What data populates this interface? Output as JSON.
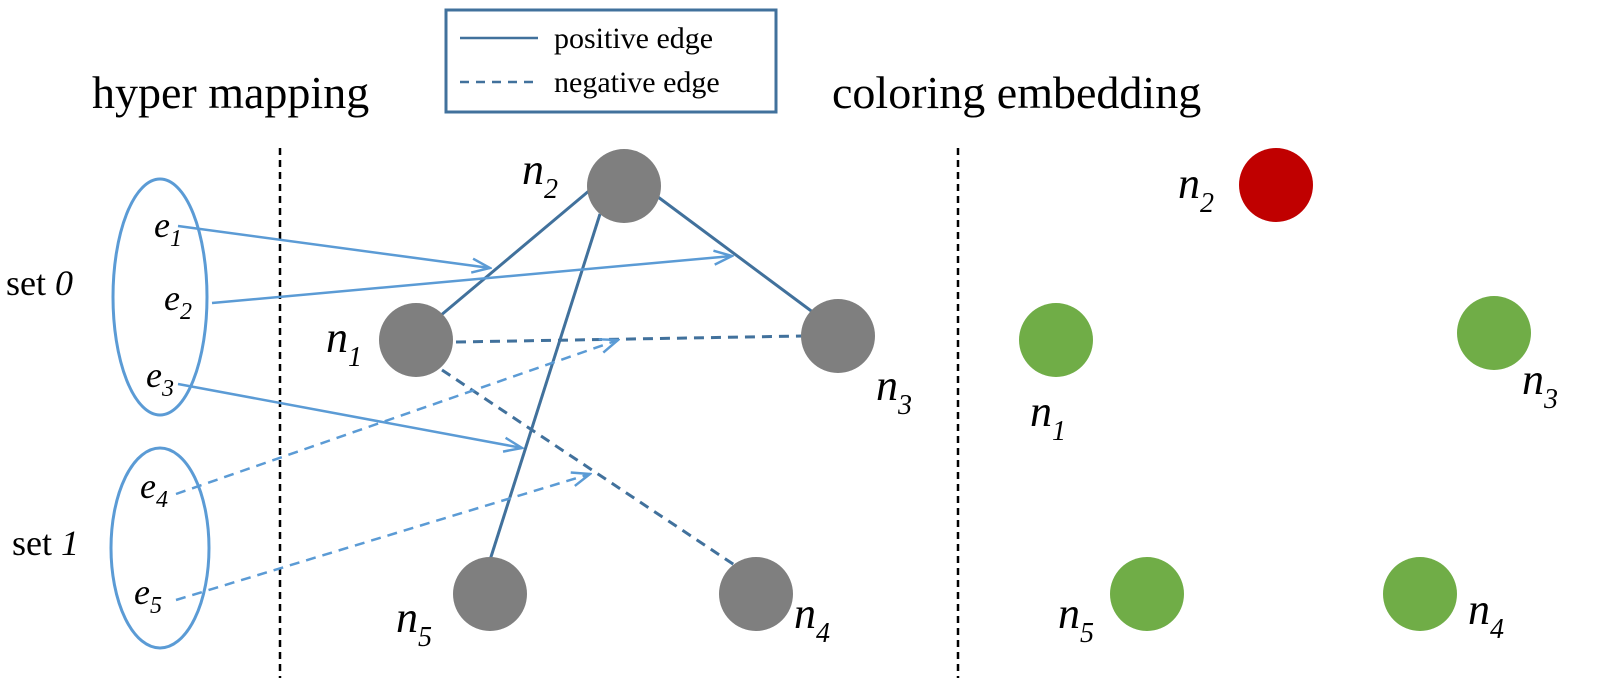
{
  "titles": {
    "left": "hyper mapping",
    "right": "coloring embedding"
  },
  "legend": {
    "positive": "positive edge",
    "negative": "negative edge"
  },
  "sets": [
    {
      "label": "set ",
      "index": "0"
    },
    {
      "label": "set ",
      "index": "1"
    }
  ],
  "hyperedges": [
    {
      "base": "e",
      "sub": "1"
    },
    {
      "base": "e",
      "sub": "2"
    },
    {
      "base": "e",
      "sub": "3"
    },
    {
      "base": "e",
      "sub": "4"
    },
    {
      "base": "e",
      "sub": "5"
    }
  ],
  "graph_nodes": [
    {
      "base": "n",
      "sub": "1"
    },
    {
      "base": "n",
      "sub": "2"
    },
    {
      "base": "n",
      "sub": "3"
    },
    {
      "base": "n",
      "sub": "4"
    },
    {
      "base": "n",
      "sub": "5"
    }
  ],
  "embedding_nodes": [
    {
      "base": "n",
      "sub": "1",
      "color": "#70ad47"
    },
    {
      "base": "n",
      "sub": "2",
      "color": "#c00000"
    },
    {
      "base": "n",
      "sub": "3",
      "color": "#70ad47"
    },
    {
      "base": "n",
      "sub": "4",
      "color": "#70ad47"
    },
    {
      "base": "n",
      "sub": "5",
      "color": "#70ad47"
    }
  ],
  "colors": {
    "graph_node": "#7f7f7f",
    "edge": "#41719c",
    "arrow": "#5b9bd5",
    "ellipse": "#5b9bd5",
    "legend_border": "#41719c"
  }
}
